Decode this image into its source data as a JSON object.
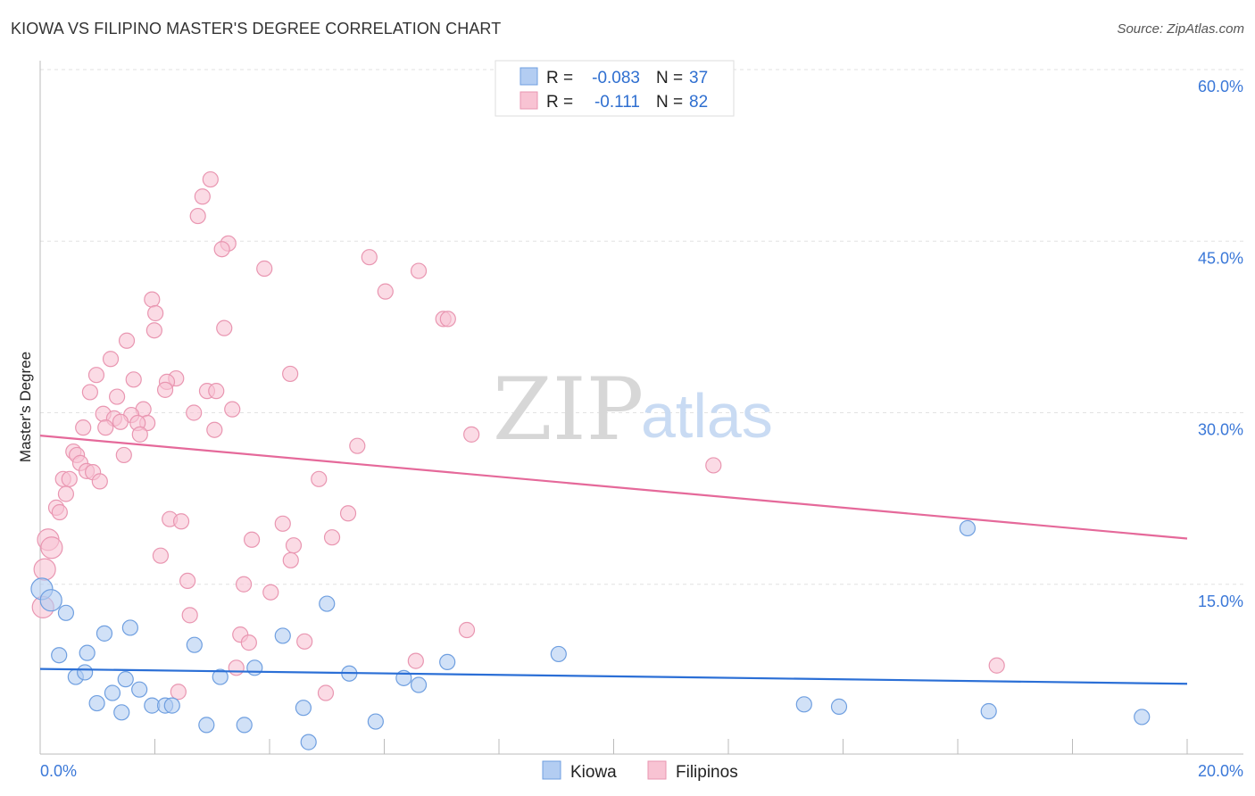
{
  "title": "KIOWA VS FILIPINO MASTER'S DEGREE CORRELATION CHART",
  "source": "Source: ZipAtlas.com",
  "watermark": {
    "a": "ZIP",
    "b": "atlas"
  },
  "legend_top": {
    "r_label": "R =",
    "n_label": "N =",
    "rows": [
      {
        "r": "-0.083",
        "n": "37"
      },
      {
        "r": "-0.111",
        "n": "82"
      }
    ]
  },
  "colors": {
    "kiowa_fill": "#b3cdf2",
    "kiowa_stroke": "#6f9fe0",
    "kiowa_line": "#2b6fd6",
    "fil_fill": "#f8c3d3",
    "fil_stroke": "#e996b1",
    "fil_line": "#e5699a",
    "tick": "#3b78d8"
  },
  "chart_data": {
    "type": "scatter",
    "title": "KIOWA VS FILIPINO MASTER'S DEGREE CORRELATION CHART",
    "xlabel": "",
    "ylabel": "Master's Degree",
    "xlim": [
      0,
      20
    ],
    "ylim": [
      0,
      60
    ],
    "x_tick_labels": [
      "0.0%",
      "20.0%"
    ],
    "y_ticks": [
      15,
      30,
      45,
      60
    ],
    "y_tick_labels": [
      "15.0%",
      "30.0%",
      "45.0%",
      "60.0%"
    ],
    "legend": [
      "Kiowa",
      "Filipinos"
    ],
    "legend_placement": "bottom-center",
    "series": [
      {
        "name": "Kiowa",
        "trend": [
          [
            0,
            7.6
          ],
          [
            20,
            6.3
          ]
        ],
        "points": [
          [
            0.03,
            14.6
          ],
          [
            0.19,
            13.6
          ],
          [
            0.45,
            12.5
          ],
          [
            0.33,
            8.8
          ],
          [
            0.62,
            6.9
          ],
          [
            0.78,
            7.3
          ],
          [
            0.82,
            9.0
          ],
          [
            0.99,
            4.6
          ],
          [
            1.12,
            10.7
          ],
          [
            1.26,
            5.5
          ],
          [
            1.42,
            3.8
          ],
          [
            1.49,
            6.7
          ],
          [
            1.57,
            11.2
          ],
          [
            1.73,
            5.8
          ],
          [
            1.95,
            4.4
          ],
          [
            2.18,
            4.4
          ],
          [
            2.3,
            4.4
          ],
          [
            2.69,
            9.7
          ],
          [
            2.9,
            2.7
          ],
          [
            3.14,
            6.9
          ],
          [
            3.56,
            2.7
          ],
          [
            3.74,
            7.7
          ],
          [
            4.23,
            10.5
          ],
          [
            4.59,
            4.2
          ],
          [
            4.68,
            1.2
          ],
          [
            5.0,
            13.3
          ],
          [
            5.39,
            7.2
          ],
          [
            5.85,
            3.0
          ],
          [
            6.34,
            6.8
          ],
          [
            6.6,
            6.2
          ],
          [
            7.1,
            8.2
          ],
          [
            9.04,
            8.9
          ],
          [
            13.32,
            4.5
          ],
          [
            13.93,
            4.3
          ],
          [
            16.17,
            19.9
          ],
          [
            16.54,
            3.9
          ],
          [
            19.21,
            3.4
          ]
        ]
      },
      {
        "name": "Filipinos",
        "trend": [
          [
            0,
            28.0
          ],
          [
            20,
            19.0
          ]
        ],
        "points": [
          [
            2.97,
            50.4
          ],
          [
            2.83,
            48.9
          ],
          [
            2.75,
            47.2
          ],
          [
            3.28,
            44.8
          ],
          [
            3.17,
            44.3
          ],
          [
            3.91,
            42.6
          ],
          [
            5.74,
            43.6
          ],
          [
            6.6,
            42.4
          ],
          [
            6.02,
            40.6
          ],
          [
            1.95,
            39.9
          ],
          [
            2.01,
            38.7
          ],
          [
            7.03,
            38.2
          ],
          [
            7.11,
            38.2
          ],
          [
            1.99,
            37.2
          ],
          [
            3.21,
            37.4
          ],
          [
            1.51,
            36.3
          ],
          [
            1.23,
            34.7
          ],
          [
            0.98,
            33.3
          ],
          [
            4.36,
            33.4
          ],
          [
            1.63,
            32.9
          ],
          [
            2.37,
            33.0
          ],
          [
            2.21,
            32.7
          ],
          [
            2.18,
            32.0
          ],
          [
            0.87,
            31.8
          ],
          [
            2.91,
            31.9
          ],
          [
            3.07,
            31.9
          ],
          [
            1.34,
            31.4
          ],
          [
            3.35,
            30.3
          ],
          [
            1.8,
            30.3
          ],
          [
            2.68,
            30.0
          ],
          [
            1.1,
            29.9
          ],
          [
            1.29,
            29.5
          ],
          [
            1.59,
            29.8
          ],
          [
            1.4,
            29.2
          ],
          [
            1.87,
            29.1
          ],
          [
            1.7,
            29.1
          ],
          [
            1.14,
            28.7
          ],
          [
            0.75,
            28.7
          ],
          [
            3.04,
            28.5
          ],
          [
            1.74,
            28.1
          ],
          [
            7.52,
            28.1
          ],
          [
            5.53,
            27.1
          ],
          [
            0.58,
            26.6
          ],
          [
            0.64,
            26.3
          ],
          [
            1.46,
            26.3
          ],
          [
            0.7,
            25.6
          ],
          [
            11.74,
            25.4
          ],
          [
            0.81,
            24.9
          ],
          [
            0.92,
            24.8
          ],
          [
            0.4,
            24.2
          ],
          [
            0.51,
            24.2
          ],
          [
            1.04,
            24.0
          ],
          [
            4.86,
            24.2
          ],
          [
            0.45,
            22.9
          ],
          [
            0.28,
            21.7
          ],
          [
            0.34,
            21.3
          ],
          [
            5.37,
            21.2
          ],
          [
            2.26,
            20.7
          ],
          [
            2.46,
            20.5
          ],
          [
            4.23,
            20.3
          ],
          [
            0.14,
            18.9
          ],
          [
            3.69,
            18.9
          ],
          [
            5.09,
            19.1
          ],
          [
            0.2,
            18.2
          ],
          [
            4.42,
            18.4
          ],
          [
            2.1,
            17.5
          ],
          [
            4.37,
            17.1
          ],
          [
            0.08,
            16.3
          ],
          [
            2.57,
            15.3
          ],
          [
            3.55,
            15.0
          ],
          [
            4.02,
            14.3
          ],
          [
            0.05,
            13.0
          ],
          [
            2.61,
            12.3
          ],
          [
            7.44,
            11.0
          ],
          [
            3.49,
            10.6
          ],
          [
            3.64,
            9.9
          ],
          [
            4.61,
            10.0
          ],
          [
            6.55,
            8.3
          ],
          [
            3.42,
            7.7
          ],
          [
            16.68,
            7.9
          ],
          [
            2.41,
            5.6
          ],
          [
            4.98,
            5.5
          ]
        ]
      }
    ]
  }
}
